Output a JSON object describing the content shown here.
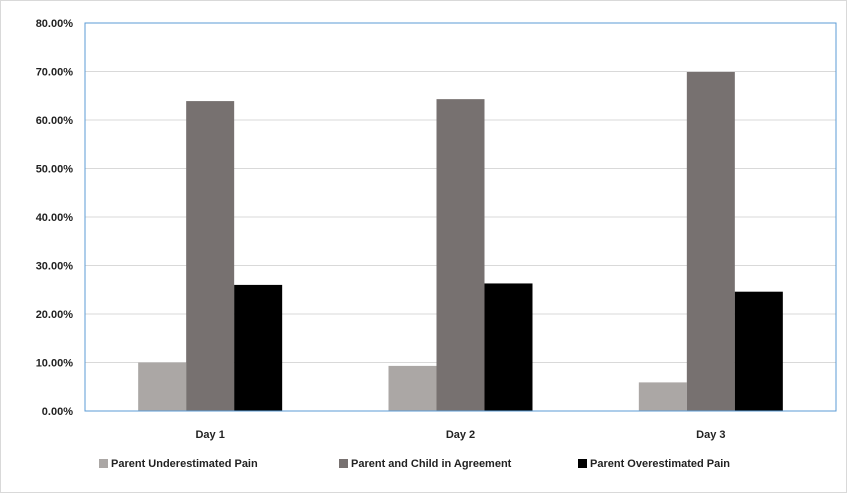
{
  "chart_data": {
    "type": "bar",
    "categories": [
      "Day 1",
      "Day 2",
      "Day 3"
    ],
    "series": [
      {
        "name": "Parent Underestimated Pain",
        "values": [
          10.0,
          9.3,
          5.9
        ],
        "color": "#aba7a5"
      },
      {
        "name": "Parent and Child in Agreement",
        "values": [
          63.9,
          64.3,
          69.9
        ],
        "color": "#777170"
      },
      {
        "name": "Parent Overestimated Pain",
        "values": [
          26.0,
          26.3,
          24.6
        ],
        "color": "#000000"
      }
    ],
    "ylim": [
      0,
      80
    ],
    "ytick_values": [
      0,
      10,
      20,
      30,
      40,
      50,
      60,
      70,
      80
    ],
    "ytick_labels": [
      "0.00%",
      "10.00%",
      "20.00%",
      "30.00%",
      "40.00%",
      "50.00%",
      "60.00%",
      "70.00%",
      "80.00%"
    ],
    "grid": true,
    "legend_position": "bottom",
    "plot_border_color": "#5b9bd5",
    "grid_color": "#d9d9d9"
  }
}
